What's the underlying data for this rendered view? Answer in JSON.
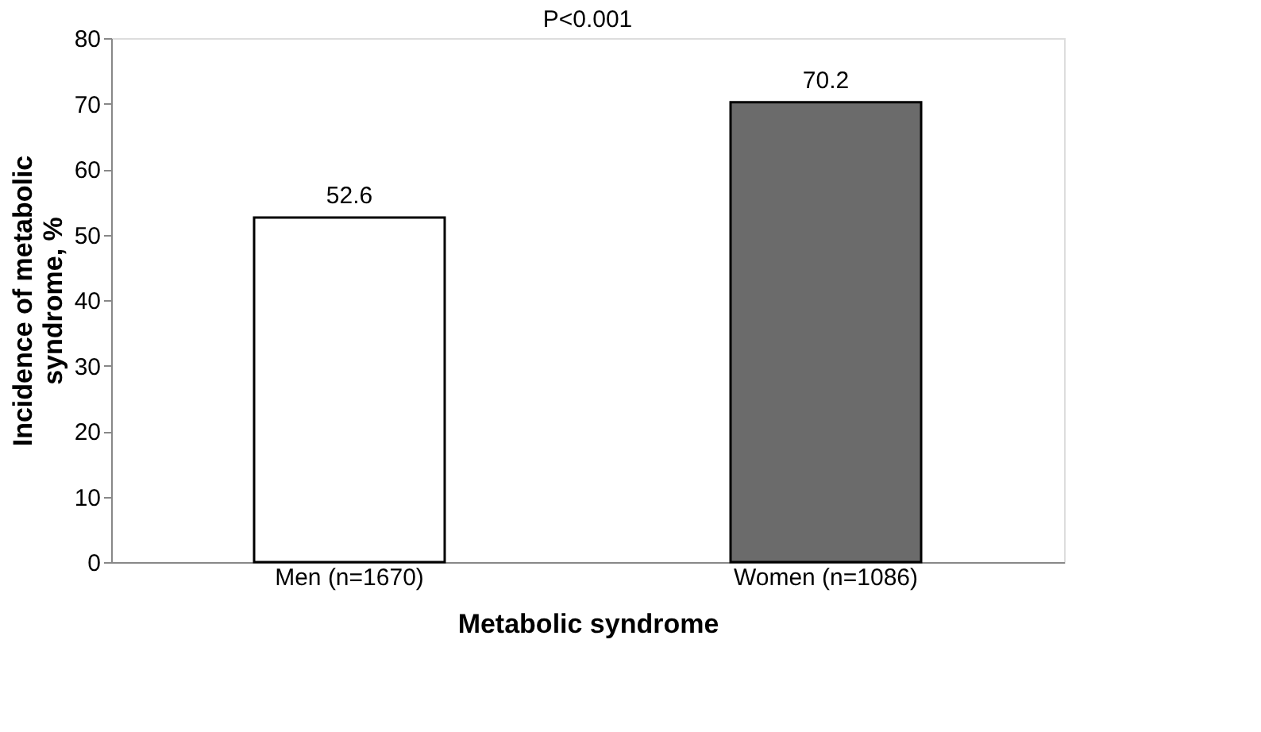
{
  "chart_data": {
    "type": "bar",
    "categories": [
      "Men (n=1670)",
      "Women (n=1086)"
    ],
    "values": [
      52.6,
      70.2
    ],
    "colors": [
      "#ffffff",
      "#6b6b6b"
    ],
    "ylim": [
      0,
      80
    ],
    "yticks": [
      0,
      10,
      20,
      30,
      40,
      50,
      60,
      70,
      80
    ],
    "xlabel": "Metabolic syndrome",
    "ylabel": "Incidence of metabolic syndrome, %",
    "annotations": [
      "P<0.001"
    ],
    "data_labels": true,
    "grid": false
  }
}
